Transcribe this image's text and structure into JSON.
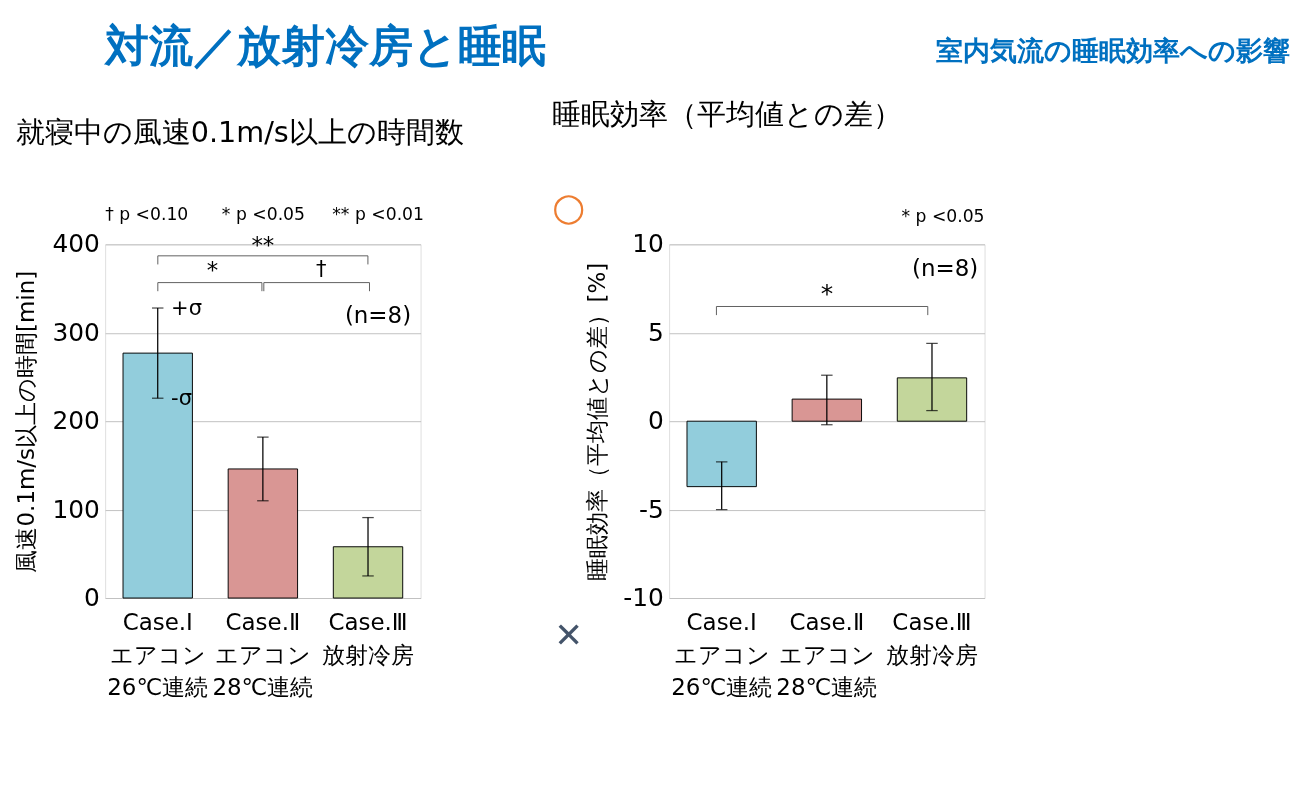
{
  "chart_data": [
    {
      "type": "other",
      "title": "対流／放射冷房と睡眠",
      "subtitle": "室内気流の睡眠効率への影響"
    },
    {
      "type": "bar",
      "title": "就寝中の風速0.1m/s以上の時間数",
      "ylabel": "風速0.1m/s以上の時間[min]",
      "categories": [
        "Case.Ⅰ\nエアコン\n26℃連続",
        "Case.Ⅱ\nエアコン\n28℃連続",
        "Case.Ⅲ\n放射冷房"
      ],
      "values": [
        277,
        146,
        58
      ],
      "colors": [
        "#92cddc",
        "#d99694",
        "#c3d69b"
      ],
      "errors": [
        51,
        36,
        33
      ],
      "ylim": [
        0,
        400
      ],
      "yticks": [
        0,
        100,
        200,
        300,
        400
      ],
      "grid": "y",
      "annotations": [
        "† p <0.10",
        "* p <0.05",
        "** p <0.01",
        "**",
        "*",
        "†",
        "(n=8)",
        {
          "text": "+σ",
          "x": "Case.Ⅰ\nエアコン\n26℃連続",
          "y": 328
        },
        {
          "text": "-σ",
          "x": "Case.Ⅰ\nエアコン\n26℃連続",
          "y": 226
        }
      ]
    },
    {
      "type": "bar",
      "title": "睡眠効率（平均値との差）",
      "ylabel": "睡眠効率（平均値との差）[%]",
      "categories": [
        "Case.Ⅰ\nエアコン\n26℃連続",
        "Case.Ⅱ\nエアコン\n28℃連続",
        "Case.Ⅲ\n放射冷房"
      ],
      "values": [
        -3.7,
        1.25,
        2.45
      ],
      "colors": [
        "#92cddc",
        "#d99694",
        "#c3d69b"
      ],
      "errors": [
        [
          -5.0,
          -2.3
        ],
        [
          -0.2,
          2.6
        ],
        [
          0.6,
          4.4
        ]
      ],
      "ylim": [
        -10,
        10
      ],
      "yticks": [
        -10,
        -5,
        0,
        5,
        10
      ],
      "grid": "y",
      "annotations": [
        "* p <0.05",
        "(n=8)",
        "*",
        "○",
        "✕"
      ]
    }
  ]
}
